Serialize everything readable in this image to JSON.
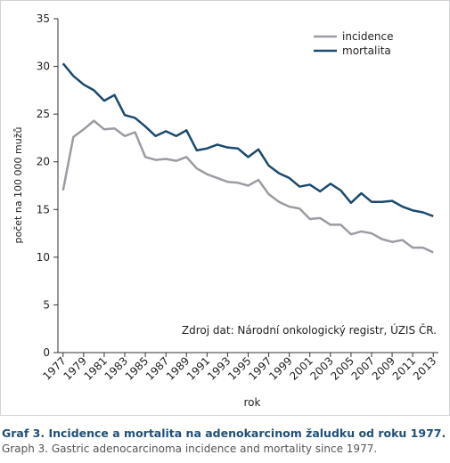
{
  "chart_data": {
    "type": "line",
    "title": "Graf 3. Incidence a mortalita na adenokarcinom žaludku od roku 1977.",
    "subtitle": "Graph 3. Gastric adenocarcinoma incidence and mortality since 1977.",
    "xlabel": "rok",
    "ylabel": "počet na 100 000 mužů",
    "annotation": "Zdroj dat: Národní onkologický registr, ÚZIS ČR.",
    "x": [
      1977,
      1978,
      1979,
      1980,
      1981,
      1982,
      1983,
      1984,
      1985,
      1986,
      1987,
      1988,
      1989,
      1990,
      1991,
      1992,
      1993,
      1994,
      1995,
      1996,
      1997,
      1998,
      1999,
      2000,
      2001,
      2002,
      2003,
      2004,
      2005,
      2006,
      2007,
      2008,
      2009,
      2010,
      2011,
      2012,
      2013
    ],
    "series": [
      {
        "name": "incidence",
        "color": "#9a9ca3",
        "values": [
          17.0,
          22.6,
          23.4,
          24.3,
          23.4,
          23.5,
          22.7,
          23.1,
          20.5,
          20.2,
          20.3,
          20.1,
          20.5,
          19.3,
          18.7,
          18.3,
          17.9,
          17.8,
          17.5,
          18.1,
          16.6,
          15.8,
          15.3,
          15.1,
          14.0,
          14.1,
          13.4,
          13.4,
          12.4,
          12.7,
          12.5,
          11.9,
          11.6,
          11.8,
          11.0,
          11.0,
          10.5
        ]
      },
      {
        "name": "mortalita",
        "color": "#1a4a6e",
        "values": [
          30.3,
          29.0,
          28.1,
          27.5,
          26.4,
          27.0,
          24.9,
          24.6,
          23.7,
          22.7,
          23.2,
          22.7,
          23.3,
          21.2,
          21.4,
          21.8,
          21.5,
          21.4,
          20.5,
          21.3,
          19.6,
          18.8,
          18.3,
          17.4,
          17.6,
          16.9,
          17.7,
          17.0,
          15.7,
          16.7,
          15.8,
          15.8,
          15.9,
          15.3,
          14.9,
          14.7,
          14.3
        ]
      }
    ],
    "xlim": [
      1976.5,
      2013.5
    ],
    "xticks": [
      1977,
      1979,
      1981,
      1983,
      1985,
      1987,
      1989,
      1991,
      1993,
      1995,
      1997,
      1999,
      2001,
      2003,
      2005,
      2007,
      2009,
      2011,
      2013
    ],
    "ylim": [
      0,
      35
    ],
    "yticks": [
      0,
      5,
      10,
      15,
      20,
      25,
      30,
      35
    ],
    "legend": "top-right"
  }
}
